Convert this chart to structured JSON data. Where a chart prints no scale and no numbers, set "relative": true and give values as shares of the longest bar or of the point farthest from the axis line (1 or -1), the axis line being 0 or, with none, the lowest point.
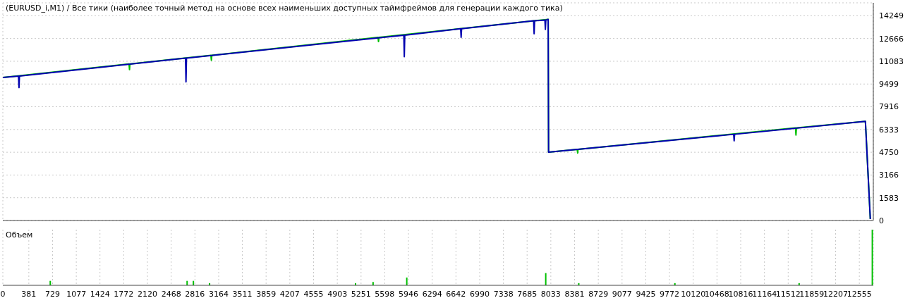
{
  "chart_data": [
    {
      "type": "line",
      "title": "(EURUSD_i,M1) / Все тики (наиболее точный метод на основе всех наименьших доступных таймфреймов для генерации каждого тика)",
      "tick_labels": "y",
      "grid": true,
      "xlim": [
        0,
        12760
      ],
      "xticks": [
        0,
        381,
        729,
        1077,
        1424,
        1772,
        2120,
        2468,
        2816,
        3164,
        3511,
        3859,
        4207,
        4555,
        4903,
        5251,
        5598,
        5946,
        6294,
        6642,
        6990,
        7338,
        7685,
        8033,
        8381,
        8729,
        9077,
        9425,
        9772,
        10120,
        10468,
        10816,
        11164,
        11512,
        11859,
        12207,
        12555
      ],
      "ylim": [
        0,
        15150
      ],
      "yticks": [
        0,
        1583,
        3166,
        4750,
        6333,
        7916,
        9499,
        11083,
        12666,
        14249
      ],
      "series": [
        {
          "color": "#00c000",
          "x": [
            0,
            1850,
            1857,
            1864,
            3050,
            3057,
            3064,
            5500,
            5507,
            5514,
            7994,
            8000,
            8420,
            8426,
            8432,
            11619,
            11626,
            11633,
            12644,
            12716
          ],
          "values": [
            9950,
            10900,
            10500,
            10900,
            11500,
            11150,
            11500,
            12750,
            12450,
            12750,
            14000,
            4750,
            4950,
            4700,
            4950,
            6450,
            5950,
            6450,
            6900,
            100
          ]
        },
        {
          "color": "#0000b0",
          "x": [
            0,
            230,
            237,
            244,
            2678,
            2685,
            2692,
            5878,
            5885,
            5892,
            6711,
            6718,
            6725,
            7781,
            7788,
            7795,
            7946,
            7953,
            7960,
            7994,
            8000,
            10713,
            10720,
            10727,
            12644,
            12716
          ],
          "values": [
            9950,
            10050,
            9250,
            10050,
            11300,
            9650,
            11300,
            12900,
            11400,
            12900,
            13350,
            12750,
            13350,
            13900,
            13000,
            13900,
            13950,
            13300,
            13950,
            14000,
            4750,
            6000,
            5550,
            6000,
            6900,
            100
          ]
        }
      ]
    },
    {
      "type": "bar",
      "title": "Объем",
      "relative": true,
      "grid": "x",
      "color": "#00c000",
      "xlim": [
        0,
        12760
      ],
      "xticks": [
        0,
        381,
        729,
        1077,
        1424,
        1772,
        2120,
        2468,
        2816,
        3164,
        3511,
        3859,
        4207,
        4555,
        4903,
        5251,
        5598,
        5946,
        6294,
        6642,
        6990,
        7338,
        7685,
        8033,
        8381,
        8729,
        9077,
        9425,
        9772,
        10120,
        10468,
        10816,
        11164,
        11512,
        11859,
        12207,
        12555
      ],
      "x": [
        700,
        2706,
        2798,
        3035,
        5175,
        5432,
        5926,
        7963,
        8447,
        9856,
        11677,
        12750
      ],
      "values": [
        0.08,
        0.08,
        0.08,
        0.04,
        0.04,
        0.06,
        0.14,
        0.22,
        0.04,
        0.04,
        0.04,
        1
      ]
    }
  ]
}
